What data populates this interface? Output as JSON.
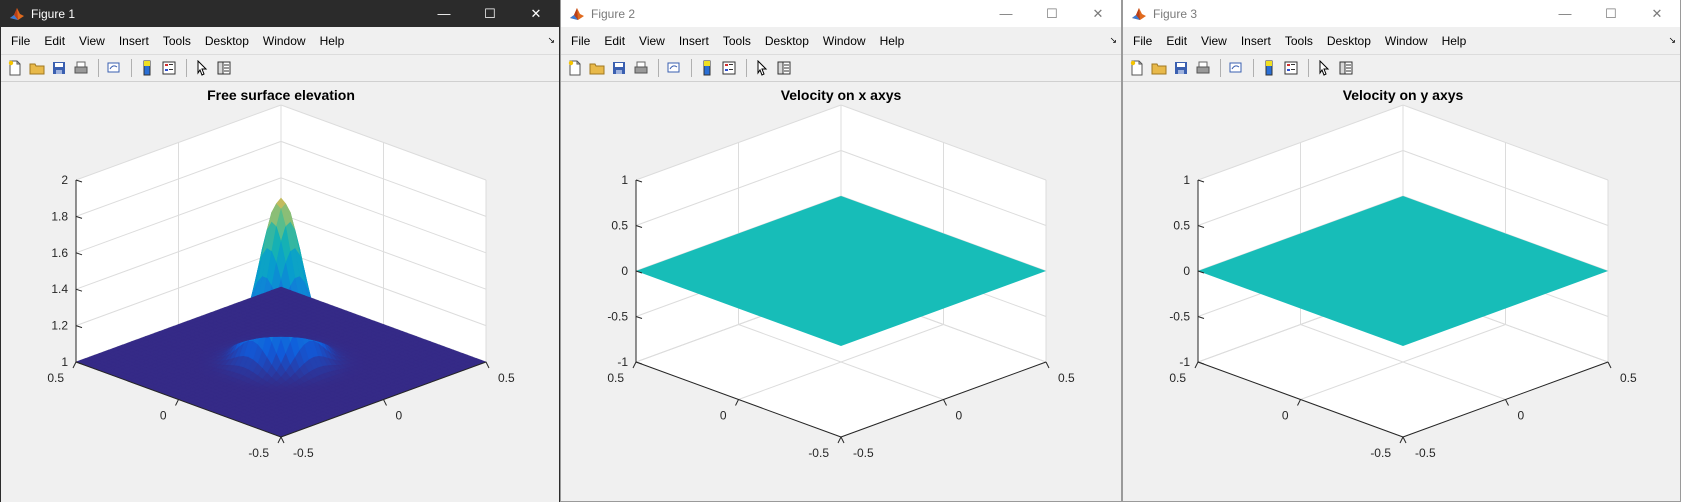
{
  "menu": [
    "File",
    "Edit",
    "View",
    "Insert",
    "Tools",
    "Desktop",
    "Window",
    "Help"
  ],
  "window_controls": {
    "minimize": "—",
    "maximize": "☐",
    "close": "✕"
  },
  "toolbar_icons": [
    "new-figure-icon",
    "open-file-icon",
    "save-icon",
    "print-icon",
    "link-plot-icon",
    "insert-colorbar-icon",
    "insert-legend-icon",
    "edit-plot-cursor-icon",
    "property-inspector-icon"
  ],
  "colors": {
    "flat_surface": "#17bdb8",
    "surface_base": "#3a1e9f",
    "active_title_bg": "#2b2b2b"
  },
  "windows": [
    {
      "title": "Figure 1",
      "active": true,
      "chart_data": {
        "type": "surface",
        "title": "Free surface elevation",
        "zlim": [
          1,
          2
        ],
        "z_ticks": [
          "1",
          "1.2",
          "1.4",
          "1.6",
          "1.8",
          "2"
        ],
        "xlim": [
          -0.5,
          0.5
        ],
        "x_ticks": [
          "-0.5",
          "0",
          "0.5"
        ],
        "ylim": [
          -0.5,
          0.5
        ],
        "y_ticks": [
          "-0.5",
          "0",
          "0.5"
        ],
        "peak_value": 1.9,
        "peak_location": [
          0,
          0
        ],
        "colormap": "parula"
      }
    },
    {
      "title": "Figure 2",
      "active": false,
      "chart_data": {
        "type": "surface",
        "title": "Velocity on x axys",
        "zlim": [
          -1,
          1
        ],
        "z_ticks": [
          "-1",
          "-0.5",
          "0",
          "0.5",
          "1"
        ],
        "xlim": [
          -0.5,
          0.5
        ],
        "x_ticks": [
          "-0.5",
          "0",
          "0.5"
        ],
        "ylim": [
          -0.5,
          0.5
        ],
        "y_ticks": [
          "-0.5",
          "0",
          "0.5"
        ],
        "constant_value": 0
      }
    },
    {
      "title": "Figure 3",
      "active": false,
      "chart_data": {
        "type": "surface",
        "title": "Velocity on y axys",
        "zlim": [
          -1,
          1
        ],
        "z_ticks": [
          "-1",
          "-0.5",
          "0",
          "0.5",
          "1"
        ],
        "xlim": [
          -0.5,
          0.5
        ],
        "x_ticks": [
          "-0.5",
          "0",
          "0.5"
        ],
        "ylim": [
          -0.5,
          0.5
        ],
        "y_ticks": [
          "-0.5",
          "0",
          "0.5"
        ],
        "constant_value": 0
      }
    }
  ]
}
